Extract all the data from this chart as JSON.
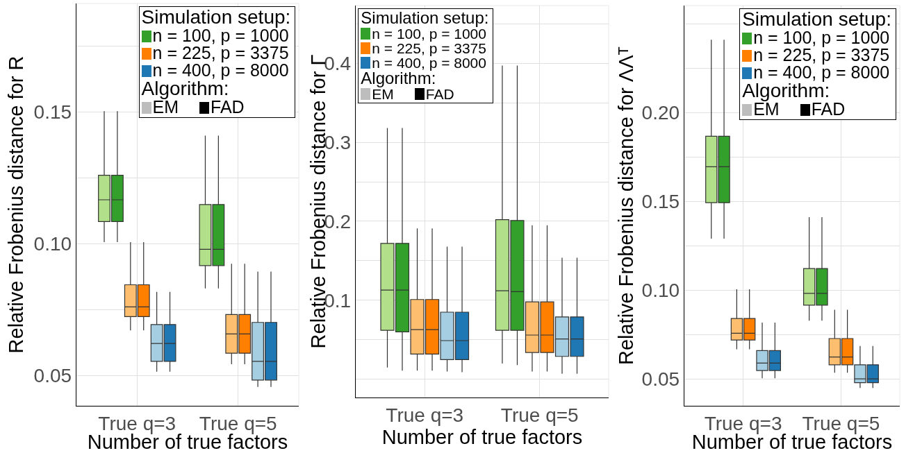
{
  "chart_data": [
    {
      "type": "box",
      "xlabel": "Number of true factors",
      "ylabel": "Relative Frobenius distance for R",
      "categories": [
        "True q=3",
        "True q=5"
      ],
      "ylim": [
        0.0384,
        0.1913
      ],
      "yticks": [
        0.05,
        {
          "value": 0.075,
          "label": null
        },
        {
          "value": 0.1,
          "label": "0.10"
        },
        {
          "value": 0.125,
          "label": null
        },
        0.15,
        {
          "value": 0.175,
          "label": null
        }
      ],
      "grid": true,
      "legend": "top right",
      "legend_title": "Simulation setup:",
      "annotations": [
        "Algorithm:",
        "EM",
        "FAD"
      ],
      "series": [
        {
          "color": "#b2df8a",
          "boxes": [
            {
              "low": 0.1006,
              "q1": 0.1084,
              "median": 0.1167,
              "q3": 0.126,
              "high": 0.1504
            },
            {
              "low": 0.083,
              "q1": 0.0917,
              "median": 0.0979,
              "q3": 0.1149,
              "high": 0.1411
            }
          ]
        },
        {
          "name": "n = 100, p = 1000",
          "color": "#33a02c",
          "boxes": [
            {
              "low": 0.1006,
              "q1": 0.1084,
              "median": 0.1167,
              "q3": 0.126,
              "high": 0.1504
            },
            {
              "low": 0.083,
              "q1": 0.0917,
              "median": 0.0979,
              "q3": 0.1149,
              "high": 0.1411
            }
          ]
        },
        {
          "color": "#fdbf6f",
          "boxes": [
            {
              "low": 0.0671,
              "q1": 0.0723,
              "median": 0.076,
              "q3": 0.0844,
              "high": 0.1006
            },
            {
              "low": 0.0542,
              "q1": 0.0584,
              "median": 0.0657,
              "q3": 0.0731,
              "high": 0.0924
            }
          ]
        },
        {
          "name": "n = 225, p = 3375",
          "color": "#ff7f00",
          "boxes": [
            {
              "low": 0.0671,
              "q1": 0.0723,
              "median": 0.076,
              "q3": 0.0844,
              "high": 0.1006
            },
            {
              "low": 0.0542,
              "q1": 0.0584,
              "median": 0.0657,
              "q3": 0.0731,
              "high": 0.0924
            }
          ]
        },
        {
          "color": "#a6cee3",
          "boxes": [
            {
              "low": 0.0514,
              "q1": 0.0553,
              "median": 0.0621,
              "q3": 0.0693,
              "high": 0.0817
            },
            {
              "low": 0.0456,
              "q1": 0.0482,
              "median": 0.0553,
              "q3": 0.0701,
              "high": 0.0894
            }
          ]
        },
        {
          "name": "n = 400, p = 8000",
          "color": "#1f78b4",
          "boxes": [
            {
              "low": 0.0514,
              "q1": 0.0553,
              "median": 0.0621,
              "q3": 0.0693,
              "high": 0.0817
            },
            {
              "low": 0.0456,
              "q1": 0.0482,
              "median": 0.0553,
              "q3": 0.0701,
              "high": 0.0894
            }
          ]
        }
      ]
    },
    {
      "type": "box",
      "xlabel": "Number of true factors",
      "ylabel": "Relative Frobenius distance for Γ",
      "categories": [
        "True q=3",
        "True q=5"
      ],
      "ylim": [
        -0.023,
        0.473
      ],
      "yticks": [
        {
          "value": 0,
          "label": null
        },
        {
          "value": 0.05,
          "label": null
        },
        0.1,
        {
          "value": 0.15,
          "label": null
        },
        0.2,
        {
          "value": 0.25,
          "label": null
        },
        0.3,
        {
          "value": 0.35,
          "label": null
        },
        0.4,
        {
          "value": 0.45,
          "label": null
        }
      ],
      "grid": true,
      "legend": "top left",
      "legend_title": "Simulation setup:",
      "annotations": [
        "Algorithm:",
        "EM",
        "FAD"
      ],
      "series": [
        {
          "color": "#b2df8a",
          "boxes": [
            {
              "low": 0.015,
              "q1": 0.062,
              "median": 0.113,
              "q3": 0.172,
              "high": 0.318
            },
            {
              "low": 0.02,
              "q1": 0.062,
              "median": 0.112,
              "q3": 0.202,
              "high": 0.397
            }
          ]
        },
        {
          "name": "n = 100, p = 1000",
          "color": "#33a02c",
          "boxes": [
            {
              "low": 0.011,
              "q1": 0.06,
              "median": 0.113,
              "q3": 0.172,
              "high": 0.318
            },
            {
              "low": 0.018,
              "q1": 0.062,
              "median": 0.111,
              "q3": 0.201,
              "high": 0.397
            }
          ]
        },
        {
          "color": "#fdbf6f",
          "boxes": [
            {
              "low": 0.011,
              "q1": 0.032,
              "median": 0.063,
              "q3": 0.101,
              "high": 0.191
            },
            {
              "low": 0.01,
              "q1": 0.034,
              "median": 0.056,
              "q3": 0.098,
              "high": 0.195
            }
          ]
        },
        {
          "name": "n = 225, p = 3375",
          "color": "#ff7f00",
          "boxes": [
            {
              "low": 0.011,
              "q1": 0.032,
              "median": 0.063,
              "q3": 0.101,
              "high": 0.191
            },
            {
              "low": 0.01,
              "q1": 0.034,
              "median": 0.056,
              "q3": 0.098,
              "high": 0.195
            }
          ]
        },
        {
          "color": "#a6cee3",
          "boxes": [
            {
              "low": 0.01,
              "q1": 0.025,
              "median": 0.049,
              "q3": 0.085,
              "high": 0.168
            },
            {
              "low": 0.007,
              "q1": 0.029,
              "median": 0.051,
              "q3": 0.079,
              "high": 0.154
            }
          ]
        },
        {
          "name": "n = 400, p = 8000",
          "color": "#1f78b4",
          "boxes": [
            {
              "low": 0.009,
              "q1": 0.025,
              "median": 0.049,
              "q3": 0.085,
              "high": 0.168
            },
            {
              "low": 0.007,
              "q1": 0.029,
              "median": 0.051,
              "q3": 0.079,
              "high": 0.154
            }
          ]
        }
      ]
    },
    {
      "type": "box",
      "xlabel": "Number of true factors",
      "ylabel": "Relative Frobenius distance for ΛΛᵀ",
      "categories": [
        "True q=3",
        "True q=5"
      ],
      "ylim": [
        0.035,
        0.2604
      ],
      "yticks": [
        0.05,
        {
          "value": 0.075,
          "label": null
        },
        {
          "value": 0.1,
          "label": "0.10"
        },
        {
          "value": 0.125,
          "label": null
        },
        0.15,
        {
          "value": 0.175,
          "label": null
        },
        {
          "value": 0.2,
          "label": "0.20"
        },
        {
          "value": 0.225,
          "label": null
        },
        {
          "value": 0.25,
          "label": null
        }
      ],
      "grid": true,
      "legend": "top right",
      "legend_title": "Simulation setup:",
      "annotations": [
        "Algorithm:",
        "EM",
        "FAD"
      ],
      "series": [
        {
          "color": "#b2df8a",
          "boxes": [
            {
              "low": 0.1291,
              "q1": 0.1494,
              "median": 0.1696,
              "q3": 0.1868,
              "high": 0.2412
            },
            {
              "low": 0.083,
              "q1": 0.0917,
              "median": 0.0983,
              "q3": 0.1123,
              "high": 0.1413
            }
          ]
        },
        {
          "name": "n = 100, p = 1000",
          "color": "#33a02c",
          "boxes": [
            {
              "low": 0.1291,
              "q1": 0.1494,
              "median": 0.1696,
              "q3": 0.1868,
              "high": 0.2412
            },
            {
              "low": 0.083,
              "q1": 0.0917,
              "median": 0.0983,
              "q3": 0.1123,
              "high": 0.1413
            }
          ]
        },
        {
          "color": "#fdbf6f",
          "boxes": [
            {
              "low": 0.0668,
              "q1": 0.0721,
              "median": 0.0759,
              "q3": 0.0842,
              "high": 0.1006
            },
            {
              "low": 0.0537,
              "q1": 0.0581,
              "median": 0.0625,
              "q3": 0.0729,
              "high": 0.0891
            }
          ]
        },
        {
          "name": "n = 225, p = 3375",
          "color": "#ff7f00",
          "boxes": [
            {
              "low": 0.0668,
              "q1": 0.0721,
              "median": 0.0759,
              "q3": 0.0842,
              "high": 0.1006
            },
            {
              "low": 0.0537,
              "q1": 0.0581,
              "median": 0.0625,
              "q3": 0.0729,
              "high": 0.0891
            }
          ]
        },
        {
          "color": "#a6cee3",
          "boxes": [
            {
              "low": 0.0505,
              "q1": 0.0549,
              "median": 0.0591,
              "q3": 0.0661,
              "high": 0.0819
            },
            {
              "low": 0.0451,
              "q1": 0.048,
              "median": 0.0502,
              "q3": 0.0581,
              "high": 0.0687
            }
          ]
        },
        {
          "name": "n = 400, p = 8000",
          "color": "#1f78b4",
          "boxes": [
            {
              "low": 0.0505,
              "q1": 0.0549,
              "median": 0.0591,
              "q3": 0.0661,
              "high": 0.0819
            },
            {
              "low": 0.0451,
              "q1": 0.048,
              "median": 0.0502,
              "q3": 0.0581,
              "high": 0.0687
            }
          ]
        }
      ]
    }
  ]
}
